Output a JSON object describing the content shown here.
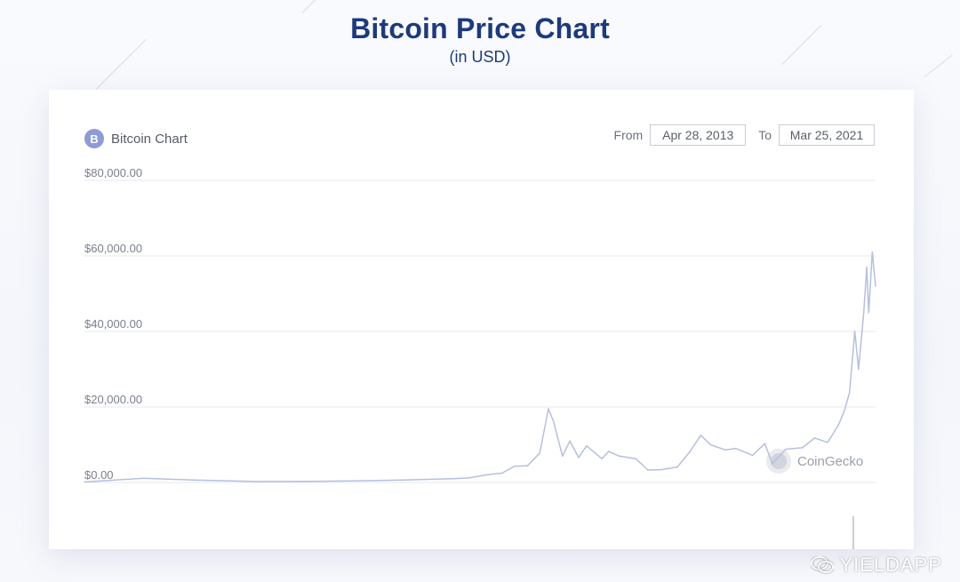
{
  "header": {
    "title": "Bitcoin Price Chart",
    "subtitle": "(in USD)"
  },
  "card": {
    "chart_name": "Bitcoin Chart",
    "icon": "bitcoin-icon",
    "from_label": "From",
    "from_value": "Apr 28, 2013",
    "to_label": "To",
    "to_value": "Mar 25, 2021",
    "brand_label": "CoinGecko"
  },
  "watermark": {
    "text": "YIELDAPP",
    "icon": "wechat-icon"
  },
  "colors": {
    "title": "#1d3a7a",
    "line": "#b7bfdd",
    "grid": "#e6e8ee",
    "axis_text": "#7a808c",
    "bitcoin_icon": "#8f9bd6"
  },
  "chart_data": {
    "type": "line",
    "title": "Bitcoin Price Chart",
    "subtitle": "(in USD)",
    "xlabel": "",
    "ylabel": "",
    "x_range": [
      "2013-04-28",
      "2021-03-25"
    ],
    "ylim": [
      0,
      80000
    ],
    "yticks": [
      0,
      20000,
      40000,
      60000,
      80000
    ],
    "ytick_labels": [
      "$0.00",
      "$20,000.00",
      "$40,000.00",
      "$60,000.00",
      "$80,000.00"
    ],
    "grid": true,
    "legend": "none",
    "series": [
      {
        "x": [
          "2013-04-28",
          "2013-11-30",
          "2014-06-01",
          "2015-01-15",
          "2015-08-01",
          "2016-01-01",
          "2016-07-01",
          "2017-01-01",
          "2017-03-01",
          "2017-05-01",
          "2017-07-01",
          "2017-08-15",
          "2017-10-01",
          "2017-11-15",
          "2017-12-17",
          "2018-01-05",
          "2018-02-06",
          "2018-03-05",
          "2018-04-06",
          "2018-05-05",
          "2018-06-30",
          "2018-07-25",
          "2018-09-01",
          "2018-11-01",
          "2018-12-15",
          "2019-02-01",
          "2019-04-01",
          "2019-05-15",
          "2019-06-26",
          "2019-08-01",
          "2019-09-24",
          "2019-11-01",
          "2020-01-01",
          "2020-02-15",
          "2020-03-13",
          "2020-05-01",
          "2020-07-01",
          "2020-08-15",
          "2020-10-01",
          "2020-11-10",
          "2020-12-01",
          "2020-12-20",
          "2021-01-08",
          "2021-01-22",
          "2021-02-10",
          "2021-02-21",
          "2021-02-28",
          "2021-03-13",
          "2021-03-25"
        ],
        "y": [
          140,
          1100,
          650,
          250,
          280,
          430,
          670,
          1000,
          1200,
          2000,
          2500,
          4300,
          4400,
          7800,
          19500,
          16000,
          7000,
          11000,
          6600,
          9700,
          6300,
          8200,
          7000,
          6300,
          3300,
          3400,
          4100,
          7900,
          12500,
          10000,
          8600,
          9000,
          7200,
          10300,
          5000,
          8800,
          9200,
          11800,
          10600,
          15300,
          19000,
          23800,
          40000,
          30000,
          45000,
          57000,
          45000,
          61000,
          52000
        ]
      }
    ]
  }
}
